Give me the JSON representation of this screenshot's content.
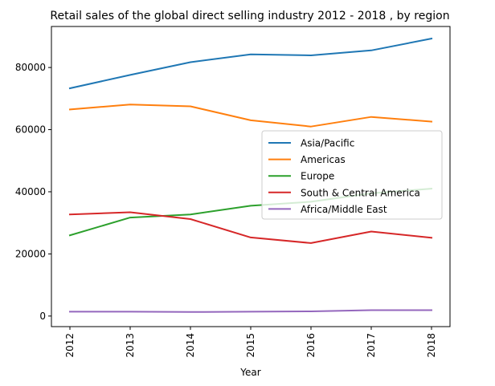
{
  "chart_data": {
    "type": "line",
    "title": "Retail sales of the global direct selling industry 2012 - 2018 , by region",
    "xlabel": "Year",
    "ylabel": "",
    "x": [
      "2012",
      "2013",
      "2014",
      "2015",
      "2016",
      "2017",
      "2018"
    ],
    "ylim": [
      -3400,
      93200
    ],
    "yticks": [
      0,
      20000,
      40000,
      60000,
      80000
    ],
    "grid": false,
    "legend_position": "center-right",
    "series": [
      {
        "name": "Asia/Pacific",
        "color": "#1f77b4",
        "values": [
          73300,
          77600,
          81700,
          84200,
          83900,
          85500,
          89300
        ]
      },
      {
        "name": "Americas",
        "color": "#ff7f0e",
        "values": [
          66500,
          68100,
          67500,
          63000,
          61000,
          64100,
          62600
        ]
      },
      {
        "name": "Europe",
        "color": "#2ca02c",
        "values": [
          26000,
          31700,
          32700,
          35500,
          36800,
          39500,
          41000
        ]
      },
      {
        "name": "South & Central America",
        "color": "#d62728",
        "values": [
          32700,
          33400,
          31200,
          25300,
          23500,
          27200,
          25200
        ]
      },
      {
        "name": "Africa/Middle East",
        "color": "#9467bd",
        "values": [
          1400,
          1400,
          1300,
          1400,
          1500,
          1900,
          1900
        ]
      }
    ]
  }
}
